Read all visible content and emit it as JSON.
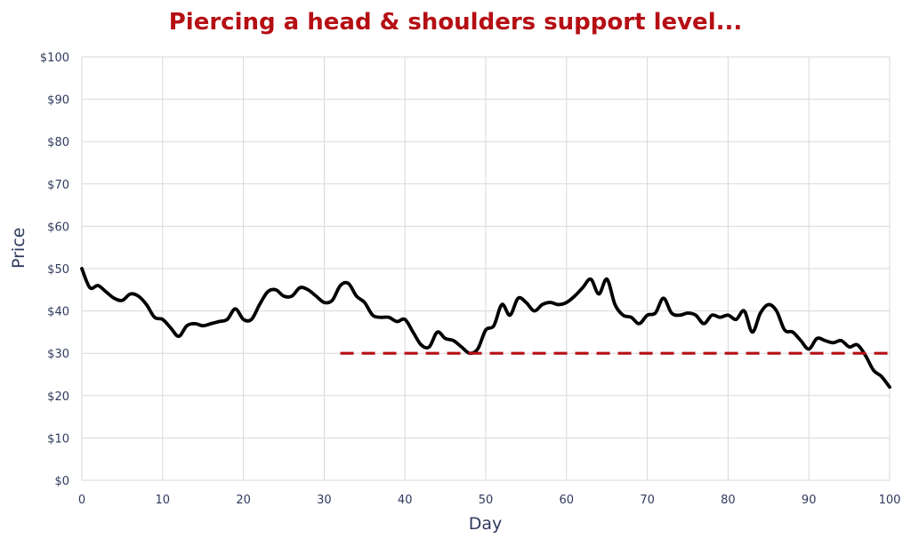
{
  "chart_data": {
    "type": "line",
    "title": "Piercing a head & shoulders support level...",
    "xlabel": "Day",
    "ylabel": "Price",
    "xlim": [
      0,
      100
    ],
    "ylim": [
      0,
      100
    ],
    "xticks": [
      0,
      10,
      20,
      30,
      40,
      50,
      60,
      70,
      80,
      90,
      100
    ],
    "xtick_labels": [
      "0",
      "10",
      "20",
      "30",
      "40",
      "50",
      "60",
      "70",
      "80",
      "90",
      "100"
    ],
    "yticks": [
      0,
      10,
      20,
      30,
      40,
      50,
      60,
      70,
      80,
      90,
      100
    ],
    "ytick_labels": [
      "$0",
      "$10",
      "$20",
      "$30",
      "$40",
      "$50",
      "$60",
      "$70",
      "$80",
      "$90",
      "$100"
    ],
    "grid": true,
    "series": [
      {
        "color": "#000000",
        "style": "solid",
        "x": [
          0,
          1,
          2,
          3,
          4,
          5,
          6,
          7,
          8,
          9,
          10,
          11,
          12,
          13,
          14,
          15,
          16,
          17,
          18,
          19,
          20,
          21,
          22,
          23,
          24,
          25,
          26,
          27,
          28,
          29,
          30,
          31,
          32,
          33,
          34,
          35,
          36,
          37,
          38,
          39,
          40,
          41,
          42,
          43,
          44,
          45,
          46,
          47,
          48,
          49,
          50,
          51,
          52,
          53,
          54,
          55,
          56,
          57,
          58,
          59,
          60,
          61,
          62,
          63,
          64,
          65,
          66,
          67,
          68,
          69,
          70,
          71,
          72,
          73,
          74,
          75,
          76,
          77,
          78,
          79,
          80,
          81,
          82,
          83,
          84,
          85,
          86,
          87,
          88,
          89,
          90,
          91,
          92,
          93,
          94,
          95,
          96,
          97,
          98,
          99,
          100
        ],
        "y": [
          50,
          45.5,
          46,
          44.5,
          43,
          42.5,
          44,
          43.5,
          41.5,
          38.5,
          38,
          36,
          34,
          36.5,
          37,
          36.5,
          37,
          37.5,
          38,
          40.5,
          38,
          38,
          41.5,
          44.5,
          45,
          43.5,
          43.5,
          45.5,
          45,
          43.5,
          42,
          42.5,
          46,
          46.5,
          43.5,
          42,
          39,
          38.5,
          38.5,
          37.5,
          38,
          35,
          32,
          31.5,
          35,
          33.5,
          33,
          31.5,
          30,
          31,
          35.5,
          36.5,
          41.5,
          39,
          43,
          42,
          40,
          41.5,
          42,
          41.5,
          42,
          43.5,
          45.5,
          47.5,
          44,
          47.5,
          41.5,
          39,
          38.5,
          37,
          39,
          39.5,
          43,
          39.5,
          39,
          39.5,
          39,
          37,
          39,
          38.5,
          39,
          38,
          40,
          35,
          39.5,
          41.5,
          40,
          35.5,
          35,
          33,
          31,
          33.5,
          33,
          32.5,
          33,
          31.5,
          32,
          29.5,
          26,
          24.5,
          22
        ]
      },
      {
        "color": "#b50f14",
        "style": "dashed",
        "x": [
          32,
          100
        ],
        "y": [
          30,
          30
        ]
      }
    ]
  }
}
